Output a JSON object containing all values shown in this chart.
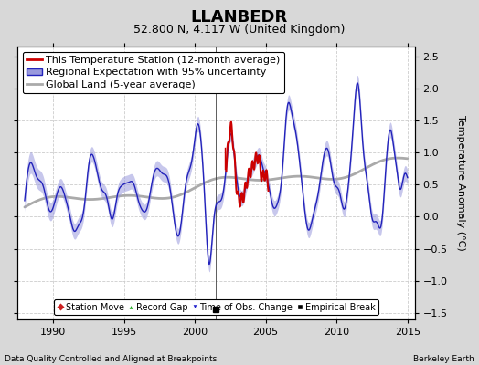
{
  "title": "LLANBEDR",
  "subtitle": "52.800 N, 4.117 W (United Kingdom)",
  "ylabel": "Temperature Anomaly (°C)",
  "xlabel_left": "Data Quality Controlled and Aligned at Breakpoints",
  "xlabel_right": "Berkeley Earth",
  "xlim": [
    1987.5,
    2015.5
  ],
  "ylim": [
    -1.6,
    2.65
  ],
  "yticks": [
    -1.5,
    -1.0,
    -0.5,
    0.0,
    0.5,
    1.0,
    1.5,
    2.0,
    2.5
  ],
  "xticks": [
    1990,
    1995,
    2000,
    2005,
    2010,
    2015
  ],
  "fig_bg_color": "#d8d8d8",
  "plot_bg_color": "#ffffff",
  "regional_color": "#2222bb",
  "regional_band_color": "#9999dd",
  "station_color": "#cc0000",
  "global_color": "#aaaaaa",
  "grid_color": "#cccccc",
  "title_fontsize": 13,
  "subtitle_fontsize": 9,
  "tick_fontsize": 8,
  "label_fontsize": 8,
  "legend_fontsize": 8
}
